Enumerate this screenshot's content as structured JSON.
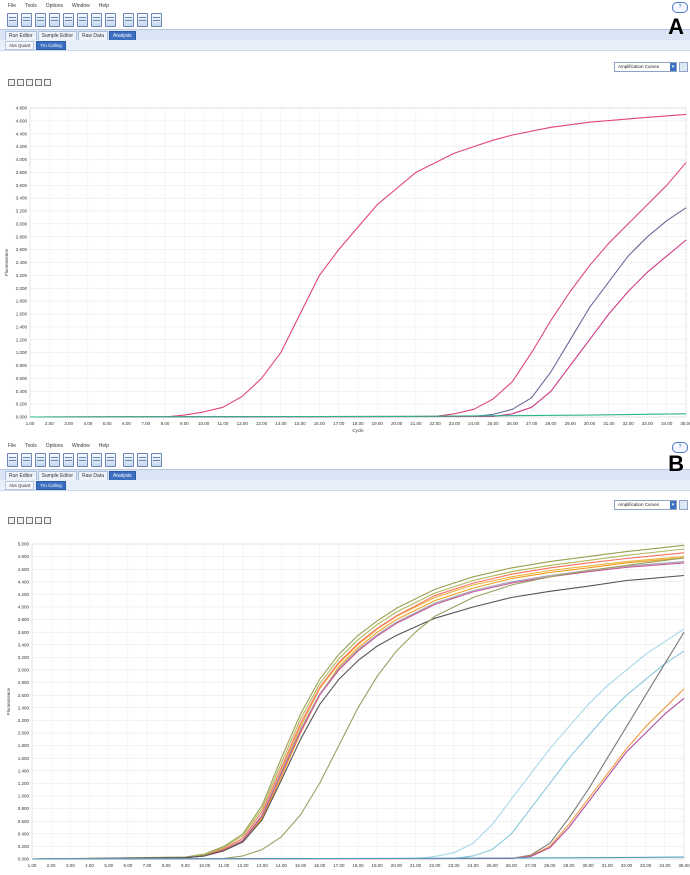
{
  "panels": [
    {
      "letter": "A",
      "menu": [
        "File",
        "Tools",
        "Options",
        "Window",
        "Help"
      ],
      "tabs": [
        "Run Editor",
        "Sample Editor",
        "Raw Data",
        "Analysis"
      ],
      "subtabs": [
        "Abs Quant",
        "Tm Calling"
      ],
      "view_selector": "Amplification Curves",
      "help_label": "?"
    },
    {
      "letter": "B",
      "menu": [
        "File",
        "Tools",
        "Options",
        "Window",
        "Help"
      ],
      "tabs": [
        "Run Editor",
        "Sample Editor",
        "Raw Data",
        "Analysis"
      ],
      "subtabs": [
        "Abs Quant",
        "Tm Calling"
      ],
      "view_selector": "Amplification Curves",
      "help_label": "?"
    }
  ],
  "chart_data": [
    {
      "type": "line",
      "xlabel": "Cycle",
      "ylabel": "Fluorescence",
      "xlim": [
        1,
        35
      ],
      "ylim": [
        0,
        4.8
      ],
      "x_ticks": [
        "1.00",
        "2.00",
        "3.00",
        "4.00",
        "5.00",
        "6.00",
        "7.00",
        "8.00",
        "9.00",
        "10.00",
        "11.00",
        "12.00",
        "13.00",
        "14.00",
        "15.00",
        "16.00",
        "17.00",
        "18.00",
        "19.00",
        "20.00",
        "21.00",
        "22.00",
        "23.00",
        "24.00",
        "25.00",
        "26.00",
        "27.00",
        "28.00",
        "29.00",
        "30.00",
        "31.00",
        "32.00",
        "33.00",
        "34.00",
        "35.00"
      ],
      "y_ticks": [
        "0.000",
        "0.200",
        "0.400",
        "0.600",
        "0.800",
        "1.000",
        "1.200",
        "1.400",
        "1.600",
        "1.800",
        "2.000",
        "2.200",
        "2.400",
        "2.600",
        "2.800",
        "3.000",
        "3.200",
        "3.400",
        "3.600",
        "3.800",
        "4.000",
        "4.200",
        "4.400",
        "4.600",
        "4.800"
      ],
      "grid": true,
      "series": [
        {
          "color": "#e0457a",
          "x": [
            1,
            8,
            9,
            10,
            11,
            12,
            13,
            14,
            15,
            16,
            17,
            18,
            19,
            20,
            21,
            22,
            23,
            24,
            25,
            26,
            28,
            30,
            32,
            35
          ],
          "values": [
            0,
            0,
            0.03,
            0.08,
            0.15,
            0.32,
            0.6,
            1.0,
            1.6,
            2.2,
            2.6,
            2.95,
            3.3,
            3.55,
            3.8,
            3.95,
            4.1,
            4.2,
            4.3,
            4.38,
            4.5,
            4.58,
            4.63,
            4.7
          ]
        },
        {
          "color": "#e0457a",
          "x": [
            1,
            22,
            23,
            24,
            25,
            26,
            27,
            28,
            29,
            30,
            31,
            32,
            33,
            34,
            35
          ],
          "values": [
            0,
            0.01,
            0.05,
            0.12,
            0.28,
            0.55,
            1.0,
            1.5,
            1.95,
            2.35,
            2.7,
            3.0,
            3.3,
            3.6,
            3.95
          ]
        },
        {
          "color": "#6a6a9a",
          "x": [
            1,
            24,
            25,
            26,
            27,
            28,
            29,
            30,
            31,
            32,
            33,
            34,
            35
          ],
          "values": [
            0,
            0.01,
            0.04,
            0.12,
            0.3,
            0.7,
            1.2,
            1.7,
            2.1,
            2.5,
            2.8,
            3.05,
            3.25
          ]
        },
        {
          "color": "#cf3a87",
          "x": [
            1,
            25,
            26,
            27,
            28,
            29,
            30,
            31,
            32,
            33,
            34,
            35
          ],
          "values": [
            0,
            0.01,
            0.05,
            0.15,
            0.4,
            0.8,
            1.2,
            1.6,
            1.95,
            2.25,
            2.5,
            2.75
          ]
        },
        {
          "color": "#2bb58a",
          "x": [
            1,
            20,
            30,
            35
          ],
          "values": [
            0,
            0.01,
            0.03,
            0.05
          ]
        }
      ]
    },
    {
      "type": "line",
      "xlabel": "",
      "ylabel": "Fluorescence",
      "xlim": [
        1,
        35
      ],
      "ylim": [
        0,
        5.0
      ],
      "x_ticks": [
        "1.00",
        "2.00",
        "3.00",
        "4.00",
        "5.00",
        "6.00",
        "7.00",
        "8.00",
        "9.00",
        "10.00",
        "11.00",
        "12.00",
        "13.00",
        "14.00",
        "15.00",
        "16.00",
        "17.00",
        "18.00",
        "19.00",
        "20.00",
        "21.00",
        "22.00",
        "23.00",
        "24.00",
        "25.00",
        "26.00",
        "27.00",
        "28.00",
        "29.00",
        "30.00",
        "31.00",
        "32.00",
        "33.00",
        "34.00",
        "35.00"
      ],
      "y_ticks": [
        "0.000",
        "0.200",
        "0.400",
        "0.600",
        "0.800",
        "1.000",
        "1.200",
        "1.400",
        "1.600",
        "1.800",
        "2.000",
        "2.200",
        "2.400",
        "2.600",
        "2.800",
        "3.000",
        "3.200",
        "3.400",
        "3.600",
        "3.800",
        "4.000",
        "4.200",
        "4.400",
        "4.600",
        "4.800",
        "5.000"
      ],
      "grid": true,
      "series": [
        {
          "color": "#e8b33a",
          "x": [
            1,
            9,
            10,
            11,
            12,
            13,
            14,
            15,
            16,
            17,
            18,
            19,
            20,
            22,
            24,
            26,
            28,
            30,
            32,
            35
          ],
          "values": [
            0,
            0.02,
            0.06,
            0.15,
            0.3,
            0.7,
            1.4,
            2.1,
            2.7,
            3.1,
            3.4,
            3.65,
            3.85,
            4.15,
            4.35,
            4.48,
            4.58,
            4.65,
            4.72,
            4.8
          ]
        },
        {
          "color": "#f0a020",
          "x": [
            1,
            9,
            10,
            11,
            12,
            13,
            14,
            15,
            16,
            17,
            18,
            19,
            20,
            22,
            24,
            26,
            28,
            30,
            32,
            35
          ],
          "values": [
            0,
            0.02,
            0.05,
            0.13,
            0.28,
            0.65,
            1.3,
            2.0,
            2.6,
            3.05,
            3.35,
            3.6,
            3.8,
            4.1,
            4.3,
            4.45,
            4.55,
            4.62,
            4.7,
            4.78
          ]
        },
        {
          "color": "#ff7060",
          "x": [
            1,
            9,
            10,
            11,
            12,
            13,
            14,
            15,
            16,
            17,
            18,
            19,
            20,
            22,
            24,
            26,
            28,
            30,
            32,
            35
          ],
          "values": [
            0,
            0.02,
            0.06,
            0.16,
            0.33,
            0.75,
            1.45,
            2.15,
            2.72,
            3.12,
            3.42,
            3.66,
            3.86,
            4.18,
            4.38,
            4.52,
            4.62,
            4.7,
            4.77,
            4.86
          ]
        },
        {
          "color": "#9aa050",
          "x": [
            1,
            9,
            10,
            11,
            12,
            13,
            14,
            15,
            16,
            17,
            18,
            19,
            20,
            22,
            24,
            26,
            28,
            30,
            32,
            35
          ],
          "values": [
            0,
            0.03,
            0.08,
            0.2,
            0.4,
            0.85,
            1.6,
            2.3,
            2.85,
            3.25,
            3.55,
            3.78,
            3.98,
            4.28,
            4.48,
            4.62,
            4.72,
            4.8,
            4.88,
            4.98
          ]
        },
        {
          "color": "#b0b858",
          "x": [
            1,
            9,
            10,
            11,
            12,
            13,
            14,
            15,
            16,
            17,
            18,
            19,
            20,
            22,
            24,
            26,
            28,
            30,
            32,
            35
          ],
          "values": [
            0,
            0.02,
            0.07,
            0.18,
            0.37,
            0.8,
            1.52,
            2.22,
            2.78,
            3.18,
            3.48,
            3.72,
            3.92,
            4.22,
            4.42,
            4.56,
            4.66,
            4.74,
            4.82,
            4.92
          ]
        },
        {
          "color": "#a0a4b4",
          "x": [
            1,
            9,
            10,
            11,
            12,
            13,
            14,
            15,
            16,
            17,
            18,
            19,
            20,
            22,
            24,
            26,
            28,
            30,
            32,
            35
          ],
          "values": [
            0,
            0.02,
            0.05,
            0.14,
            0.3,
            0.7,
            1.38,
            2.05,
            2.62,
            3.02,
            3.32,
            3.56,
            3.76,
            4.06,
            4.26,
            4.4,
            4.5,
            4.58,
            4.65,
            4.72
          ]
        },
        {
          "color": "#c85a96",
          "x": [
            1,
            9,
            10,
            11,
            12,
            13,
            14,
            15,
            16,
            17,
            18,
            19,
            20,
            22,
            24,
            26,
            28,
            30,
            32,
            35
          ],
          "values": [
            0,
            0.02,
            0.05,
            0.14,
            0.29,
            0.68,
            1.35,
            2.02,
            2.6,
            3.0,
            3.3,
            3.54,
            3.74,
            4.04,
            4.24,
            4.38,
            4.48,
            4.56,
            4.63,
            4.7
          ]
        },
        {
          "color": "#555555",
          "x": [
            1,
            9,
            10,
            11,
            12,
            13,
            14,
            15,
            16,
            17,
            18,
            19,
            20,
            22,
            24,
            26,
            28,
            30,
            32,
            35
          ],
          "values": [
            0,
            0.02,
            0.05,
            0.13,
            0.27,
            0.62,
            1.25,
            1.9,
            2.45,
            2.85,
            3.15,
            3.38,
            3.55,
            3.82,
            4.0,
            4.15,
            4.25,
            4.33,
            4.42,
            4.5
          ]
        },
        {
          "color": "#9aa060",
          "x": [
            1,
            11,
            12,
            13,
            14,
            15,
            16,
            17,
            18,
            19,
            20,
            21,
            22,
            24,
            26,
            28,
            30,
            32,
            35
          ],
          "values": [
            0,
            0.01,
            0.05,
            0.15,
            0.35,
            0.7,
            1.2,
            1.8,
            2.4,
            2.9,
            3.3,
            3.6,
            3.85,
            4.15,
            4.35,
            4.48,
            4.58,
            4.66,
            4.78
          ]
        },
        {
          "color": "#a8d8e8",
          "x": [
            1,
            21,
            22,
            23,
            24,
            25,
            26,
            27,
            28,
            29,
            30,
            31,
            32,
            33,
            34,
            35
          ],
          "values": [
            0,
            0.01,
            0.04,
            0.1,
            0.25,
            0.55,
            0.95,
            1.35,
            1.75,
            2.1,
            2.45,
            2.75,
            3.0,
            3.25,
            3.45,
            3.65
          ]
        },
        {
          "color": "#88c8dc",
          "x": [
            1,
            23,
            24,
            25,
            26,
            27,
            28,
            29,
            30,
            31,
            32,
            33,
            34,
            35
          ],
          "values": [
            0,
            0.01,
            0.05,
            0.15,
            0.4,
            0.8,
            1.2,
            1.6,
            1.95,
            2.3,
            2.6,
            2.85,
            3.1,
            3.3
          ]
        },
        {
          "color": "#7a7a7a",
          "x": [
            1,
            26,
            27,
            28,
            29,
            30,
            31,
            32,
            33,
            34,
            35
          ],
          "values": [
            0,
            0.01,
            0.06,
            0.25,
            0.65,
            1.1,
            1.6,
            2.1,
            2.6,
            3.1,
            3.6
          ]
        },
        {
          "color": "#f09a40",
          "x": [
            1,
            26,
            27,
            28,
            29,
            30,
            31,
            32,
            33,
            34,
            35
          ],
          "values": [
            0,
            0.01,
            0.05,
            0.2,
            0.55,
            0.95,
            1.35,
            1.75,
            2.1,
            2.4,
            2.7
          ]
        },
        {
          "color": "#b04a9a",
          "x": [
            1,
            26,
            27,
            28,
            29,
            30,
            31,
            32,
            33,
            34,
            35
          ],
          "values": [
            0,
            0.01,
            0.04,
            0.18,
            0.5,
            0.9,
            1.3,
            1.7,
            2.0,
            2.3,
            2.55
          ]
        },
        {
          "color": "#4da0c0",
          "x": [
            1,
            20,
            30,
            35
          ],
          "values": [
            0,
            0.01,
            0.02,
            0.03
          ]
        }
      ]
    }
  ]
}
